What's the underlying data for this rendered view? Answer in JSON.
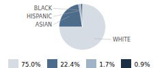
{
  "chart_data": {
    "type": "pie",
    "categories": [
      "WHITE",
      "ASIAN",
      "HISPANIC",
      "BLACK"
    ],
    "values": [
      75.0,
      22.4,
      1.7,
      0.9
    ],
    "value_labels": [
      "75.0%",
      "22.4%",
      "1.7%",
      "0.9%"
    ],
    "colors": [
      "#d6dce4",
      "#4d6b8a",
      "#a0b4c8",
      "#1a2e44"
    ],
    "legend": "bottom"
  }
}
